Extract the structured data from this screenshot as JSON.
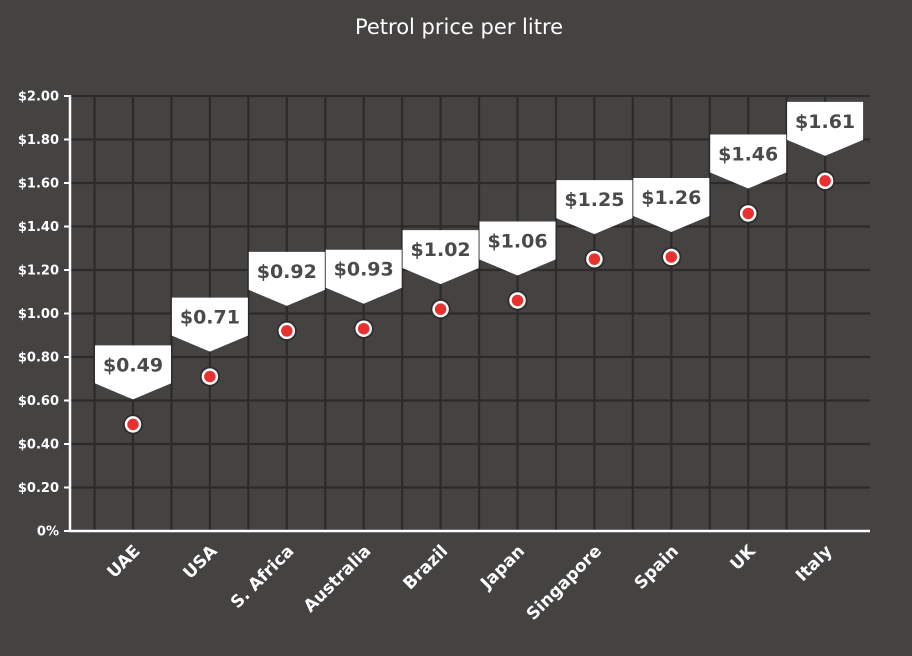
{
  "chart_data": {
    "type": "scatter",
    "title": "Petrol price per litre",
    "xlabel": "",
    "ylabel": "",
    "categories": [
      "UAE",
      "USA",
      "S. Africa",
      "Australia",
      "Brazil",
      "Japan",
      "Singapore",
      "Spain",
      "UK",
      "Italy"
    ],
    "values": [
      0.49,
      0.71,
      0.92,
      0.93,
      1.02,
      1.06,
      1.25,
      1.26,
      1.46,
      1.61
    ],
    "data_labels": [
      "$0.49",
      "$0.71",
      "$0.92",
      "$0.93",
      "$1.02",
      "$1.06",
      "$1.25",
      "$1.26",
      "$1.46",
      "$1.61"
    ],
    "y_ticks": [
      0,
      0.2,
      0.4,
      0.6,
      0.8,
      1.0,
      1.2,
      1.4,
      1.6,
      1.8,
      2.0
    ],
    "y_tick_labels": [
      "0%",
      "$0.20",
      "$0.40",
      "$0.60",
      "$0.80",
      "$1.00",
      "$1.20",
      "$1.40",
      "$1.60",
      "$1.80",
      "$2.00"
    ],
    "ylim": [
      0,
      2.0
    ],
    "grid": true,
    "legend": "none",
    "colors": {
      "background": "#444342",
      "grid": "#2c2b2a",
      "axis": "#ffffff",
      "point": "#e8302f",
      "point_ring": "#ffffff",
      "label_bg": "#ffffff",
      "label_text": "#4a4a4a"
    }
  }
}
